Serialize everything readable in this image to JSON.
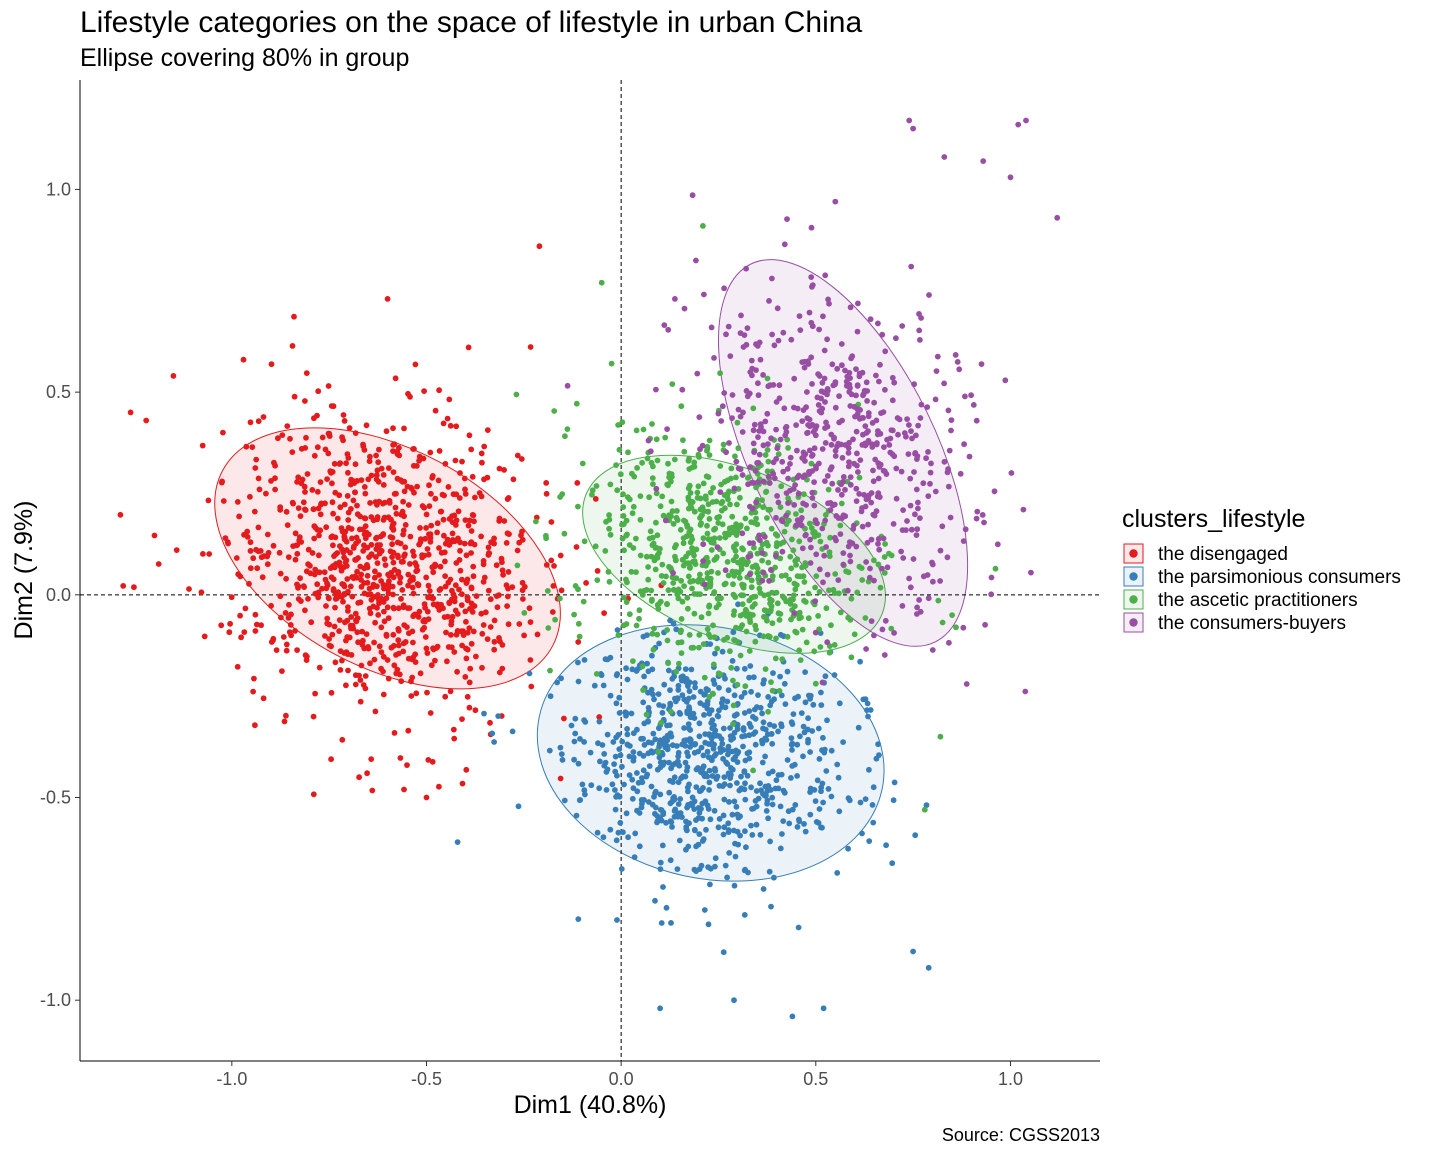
{
  "chart_data": {
    "type": "scatter",
    "title": "Lifestyle categories on the space of lifestyle in urban China",
    "subtitle": "Ellipse covering 80% in group",
    "xlabel": "Dim1 (40.8%)",
    "ylabel": "Dim2 (7.9%)",
    "caption": "Source: CGSS2013",
    "xlim": [
      -1.39,
      1.23
    ],
    "ylim": [
      -1.15,
      1.27
    ],
    "x_ticks": [
      -1.0,
      -0.5,
      0.0,
      0.5,
      1.0
    ],
    "x_tick_labels": [
      "-1.0",
      "-0.5",
      "0.0",
      "0.5",
      "1.0"
    ],
    "y_ticks": [
      -1.0,
      -0.5,
      0.0,
      0.5,
      1.0
    ],
    "y_tick_labels": [
      "-1.0",
      "-0.5",
      "0.0",
      "0.5",
      "1.0"
    ],
    "reference_lines": {
      "x": 0,
      "y": 0,
      "style": "dashed"
    },
    "grid": false,
    "legend": {
      "title": "clusters_lifestyle",
      "placement": "right"
    },
    "series": [
      {
        "name": "the disengaged",
        "color": "#e41a1c",
        "n_points": 1000,
        "mean": [
          -0.6,
          0.07
        ],
        "spread": [
          0.21,
          0.18
        ],
        "rotation_deg": -28,
        "ellipse": {
          "center": [
            -0.6,
            0.09
          ],
          "semi_axes": [
            0.48,
            0.27
          ],
          "angle_deg": -28,
          "level": 0.8
        },
        "outliers": [
          [
            -1.26,
            0.45
          ],
          [
            -1.22,
            0.43
          ],
          [
            -1.15,
            0.54
          ],
          [
            -0.97,
            0.58
          ],
          [
            -0.6,
            0.73
          ],
          [
            -0.21,
            0.86
          ],
          [
            -0.5,
            -0.5
          ],
          [
            -0.55,
            -0.42
          ]
        ]
      },
      {
        "name": "the parsimonious consumers",
        "color": "#377eb8",
        "n_points": 800,
        "mean": [
          0.22,
          -0.4
        ],
        "spread": [
          0.18,
          0.14
        ],
        "rotation_deg": -10,
        "ellipse": {
          "center": [
            0.23,
            -0.39
          ],
          "semi_axes": [
            0.45,
            0.31
          ],
          "angle_deg": -12,
          "level": 0.8
        },
        "outliers": [
          [
            0.1,
            -1.02
          ],
          [
            0.29,
            -1.0
          ],
          [
            0.44,
            -1.04
          ],
          [
            0.52,
            -1.02
          ],
          [
            -0.11,
            -0.8
          ],
          [
            -0.42,
            -0.61
          ],
          [
            0.79,
            -0.92
          ],
          [
            0.75,
            -0.88
          ]
        ]
      },
      {
        "name": "the ascetic practitioners",
        "color": "#4daf4a",
        "n_points": 750,
        "mean": [
          0.26,
          0.1
        ],
        "spread": [
          0.19,
          0.15
        ],
        "rotation_deg": -22,
        "ellipse": {
          "center": [
            0.29,
            0.1
          ],
          "semi_axes": [
            0.41,
            0.21
          ],
          "angle_deg": -22,
          "level": 0.8
        },
        "outliers": [
          [
            0.21,
            0.91
          ],
          [
            -0.05,
            0.77
          ],
          [
            0.85,
            -0.05
          ],
          [
            0.86,
            -0.08
          ],
          [
            0.78,
            -0.53
          ],
          [
            0.82,
            -0.35
          ]
        ]
      },
      {
        "name": "the consumers-buyers",
        "color": "#984ea3",
        "n_points": 600,
        "mean": [
          0.55,
          0.35
        ],
        "spread": [
          0.21,
          0.16
        ],
        "rotation_deg": -60,
        "ellipse": {
          "center": [
            0.57,
            0.35
          ],
          "semi_axes": [
            0.54,
            0.23
          ],
          "angle_deg": -64,
          "level": 0.8
        },
        "outliers": [
          [
            0.74,
            1.17
          ],
          [
            1.02,
            1.16
          ],
          [
            1.04,
            1.17
          ],
          [
            0.75,
            1.15
          ],
          [
            0.83,
            1.08
          ],
          [
            0.93,
            1.07
          ],
          [
            1.12,
            0.93
          ],
          [
            1.0,
            1.03
          ],
          [
            0.55,
            0.97
          ]
        ]
      }
    ]
  }
}
